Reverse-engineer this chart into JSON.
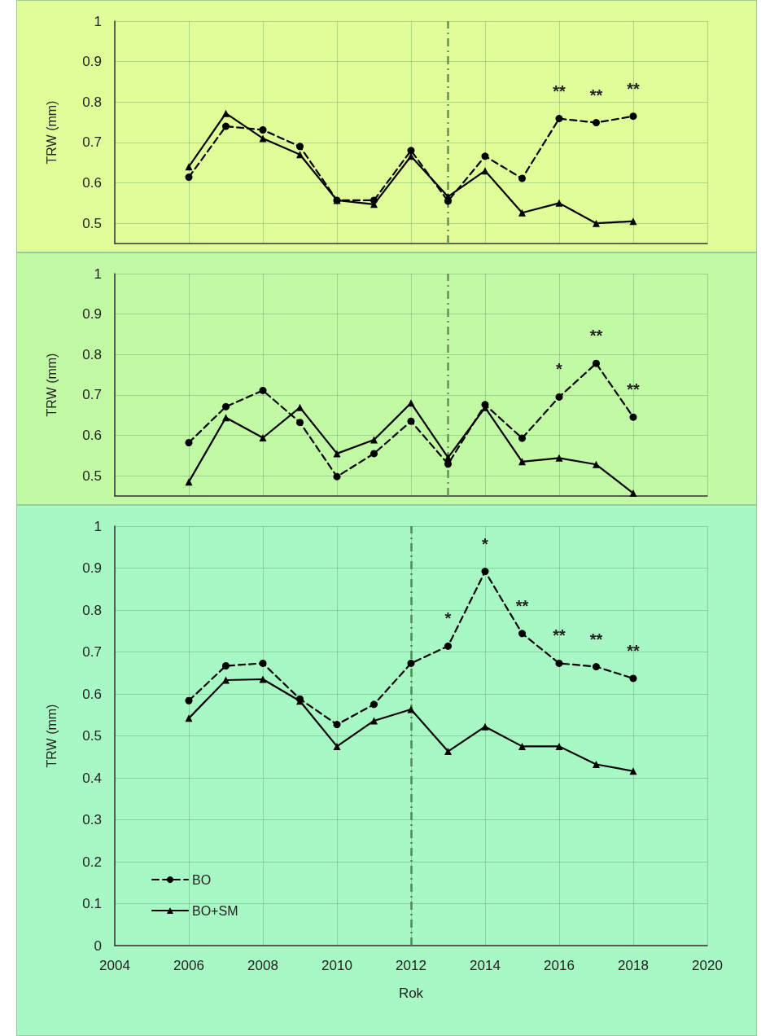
{
  "chart_data": [
    {
      "type": "line",
      "ylabel": "TRW (mm)",
      "x": [
        2006,
        2007,
        2008,
        2009,
        2010,
        2011,
        2012,
        2013,
        2014,
        2015,
        2016,
        2017,
        2018
      ],
      "xlim": [
        2004,
        2020
      ],
      "xticks": [
        2004,
        2006,
        2008,
        2010,
        2012,
        2014,
        2016,
        2018,
        2020
      ],
      "ylim": [
        0.45,
        1
      ],
      "yticks": [
        0.5,
        0.6,
        0.7,
        0.8,
        0.9,
        1
      ],
      "grid": true,
      "tick_labels": "y",
      "series": [
        {
          "color": "#000000",
          "marker": "circle",
          "line_style": "dashed",
          "values": [
            0.614,
            0.74,
            0.731,
            0.69,
            0.557,
            0.557,
            0.68,
            0.555,
            0.666,
            0.611,
            0.759,
            0.749,
            0.765
          ]
        },
        {
          "color": "#000000",
          "marker": "triangle",
          "line_style": "solid",
          "values": [
            0.64,
            0.772,
            0.71,
            0.67,
            0.557,
            0.547,
            0.666,
            0.566,
            0.63,
            0.526,
            0.55,
            0.5,
            0.505
          ]
        }
      ],
      "ref_lines": [
        {
          "axis": "x",
          "value": 2013,
          "color": "#6b8e5a",
          "line_style": "dashed"
        }
      ],
      "annotations": [
        {
          "text": "**",
          "x": 2016,
          "y": 0.759
        },
        {
          "text": "**",
          "x": 2017,
          "y": 0.749
        },
        {
          "text": "**",
          "x": 2018,
          "y": 0.765
        }
      ]
    },
    {
      "type": "line",
      "ylabel": "TRW (mm)",
      "x": [
        2006,
        2007,
        2008,
        2009,
        2010,
        2011,
        2012,
        2013,
        2014,
        2015,
        2016,
        2017,
        2018
      ],
      "xlim": [
        2004,
        2020
      ],
      "xticks": [
        2004,
        2006,
        2008,
        2010,
        2012,
        2014,
        2016,
        2018,
        2020
      ],
      "ylim": [
        0.45,
        1
      ],
      "yticks": [
        0.5,
        0.6,
        0.7,
        0.8,
        0.9,
        1
      ],
      "grid": true,
      "tick_labels": "y",
      "series": [
        {
          "color": "#000000",
          "marker": "circle",
          "line_style": "dashed",
          "values": [
            0.582,
            0.671,
            0.711,
            0.632,
            0.498,
            0.555,
            0.635,
            0.529,
            0.676,
            0.593,
            0.695,
            0.778,
            0.645
          ]
        },
        {
          "color": "#000000",
          "marker": "triangle",
          "line_style": "solid",
          "values": [
            0.485,
            0.644,
            0.594,
            0.669,
            0.555,
            0.589,
            0.68,
            0.545,
            0.669,
            0.535,
            0.544,
            0.528,
            0.457
          ]
        }
      ],
      "ref_lines": [
        {
          "axis": "x",
          "value": 2013,
          "color": "#6b8e5a",
          "line_style": "dashed"
        }
      ],
      "annotations": [
        {
          "text": "*",
          "x": 2016,
          "y": 0.695
        },
        {
          "text": "**",
          "x": 2017,
          "y": 0.778
        },
        {
          "text": "**",
          "x": 2018,
          "y": 0.645
        }
      ]
    },
    {
      "type": "line",
      "xlabel": "Rok",
      "ylabel": "TRW (mm)",
      "x": [
        2006,
        2007,
        2008,
        2009,
        2010,
        2011,
        2012,
        2013,
        2014,
        2015,
        2016,
        2017,
        2018
      ],
      "xlim": [
        2004,
        2020
      ],
      "xticks": [
        2004,
        2006,
        2008,
        2010,
        2012,
        2014,
        2016,
        2018,
        2020
      ],
      "ylim": [
        0,
        1
      ],
      "yticks": [
        0,
        0.1,
        0.2,
        0.3,
        0.4,
        0.5,
        0.6,
        0.7,
        0.8,
        0.9,
        1
      ],
      "grid": true,
      "legend": "bottom left",
      "series": [
        {
          "name": "BO",
          "color": "#000000",
          "marker": "circle",
          "line_style": "dashed",
          "values": [
            0.584,
            0.667,
            0.673,
            0.588,
            0.527,
            0.575,
            0.673,
            0.714,
            0.892,
            0.744,
            0.673,
            0.665,
            0.637
          ]
        },
        {
          "name": "BO+SM",
          "color": "#000000",
          "marker": "triangle",
          "line_style": "solid",
          "values": [
            0.542,
            0.633,
            0.635,
            0.583,
            0.475,
            0.536,
            0.563,
            0.463,
            0.522,
            0.475,
            0.475,
            0.432,
            0.416
          ]
        }
      ],
      "ref_lines": [
        {
          "axis": "x",
          "value": 2012,
          "color": "#4f8a55",
          "line_style": "dashed"
        }
      ],
      "annotations": [
        {
          "text": "*",
          "x": 2013,
          "y": 0.714
        },
        {
          "text": "*",
          "x": 2014,
          "y": 0.892
        },
        {
          "text": "**",
          "x": 2015,
          "y": 0.744
        },
        {
          "text": "**",
          "x": 2016,
          "y": 0.673
        },
        {
          "text": "**",
          "x": 2017,
          "y": 0.665
        },
        {
          "text": "**",
          "x": 2018,
          "y": 0.637
        }
      ]
    }
  ]
}
